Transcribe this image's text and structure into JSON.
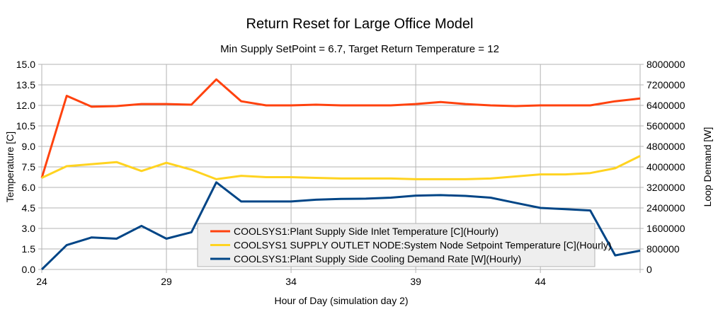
{
  "chart_data": {
    "type": "line",
    "title": "Return Reset for Large Office Model",
    "subtitle": "Min Supply SetPoint = 6.7, Target Return Temperature = 12",
    "xlabel": "Hour of Day (simulation day 2)",
    "ylabel": "Temperature [C]",
    "y2label": "Loop Demand [W]",
    "xlim": [
      24,
      48
    ],
    "ylim": [
      0,
      15
    ],
    "y2lim": [
      0,
      8000000
    ],
    "x_ticks": [
      24,
      29,
      34,
      39,
      44
    ],
    "y_ticks": [
      "0.0",
      "1.5",
      "3.0",
      "4.5",
      "6.0",
      "7.5",
      "9.0",
      "10.5",
      "12.0",
      "13.5",
      "15.0"
    ],
    "y2_ticks": [
      "0",
      "800000",
      "1600000",
      "2400000",
      "3200000",
      "4000000",
      "4800000",
      "5600000",
      "6400000",
      "7200000",
      "8000000"
    ],
    "grid": true,
    "legend_placement": "bottom-center",
    "x": [
      24,
      25,
      26,
      27,
      28,
      29,
      30,
      31,
      32,
      33,
      34,
      35,
      36,
      37,
      38,
      39,
      40,
      41,
      42,
      43,
      44,
      45,
      46,
      47,
      48
    ],
    "series": [
      {
        "name": "COOLSYS1:Plant Supply Side Inlet Temperature [C](Hourly)",
        "axis": "left",
        "color": "#ff420e",
        "values": [
          6.7,
          12.7,
          11.9,
          11.95,
          12.1,
          12.1,
          12.05,
          13.9,
          12.3,
          12.0,
          12.0,
          12.05,
          12.0,
          12.0,
          12.0,
          12.1,
          12.25,
          12.1,
          12.0,
          11.95,
          12.0,
          12.0,
          12.0,
          12.3,
          12.5
        ]
      },
      {
        "name": "COOLSYS1 SUPPLY OUTLET NODE:System Node Setpoint Temperature [C](Hourly)",
        "axis": "left",
        "color": "#ffd320",
        "values": [
          6.7,
          7.55,
          7.7,
          7.85,
          7.2,
          7.8,
          7.3,
          6.6,
          6.85,
          6.75,
          6.75,
          6.7,
          6.65,
          6.65,
          6.65,
          6.6,
          6.6,
          6.6,
          6.65,
          6.8,
          6.95,
          6.95,
          7.05,
          7.4,
          8.3
        ]
      },
      {
        "name": "COOLSYS1:Plant Supply Side Cooling Demand Rate [W](Hourly)",
        "axis": "right",
        "color": "#004586",
        "values": [
          0,
          950000,
          1250000,
          1200000,
          1700000,
          1200000,
          1450000,
          3400000,
          2650000,
          2650000,
          2650000,
          2720000,
          2750000,
          2760000,
          2800000,
          2880000,
          2900000,
          2870000,
          2800000,
          2600000,
          2400000,
          2350000,
          2300000,
          550000,
          730000
        ]
      }
    ]
  }
}
